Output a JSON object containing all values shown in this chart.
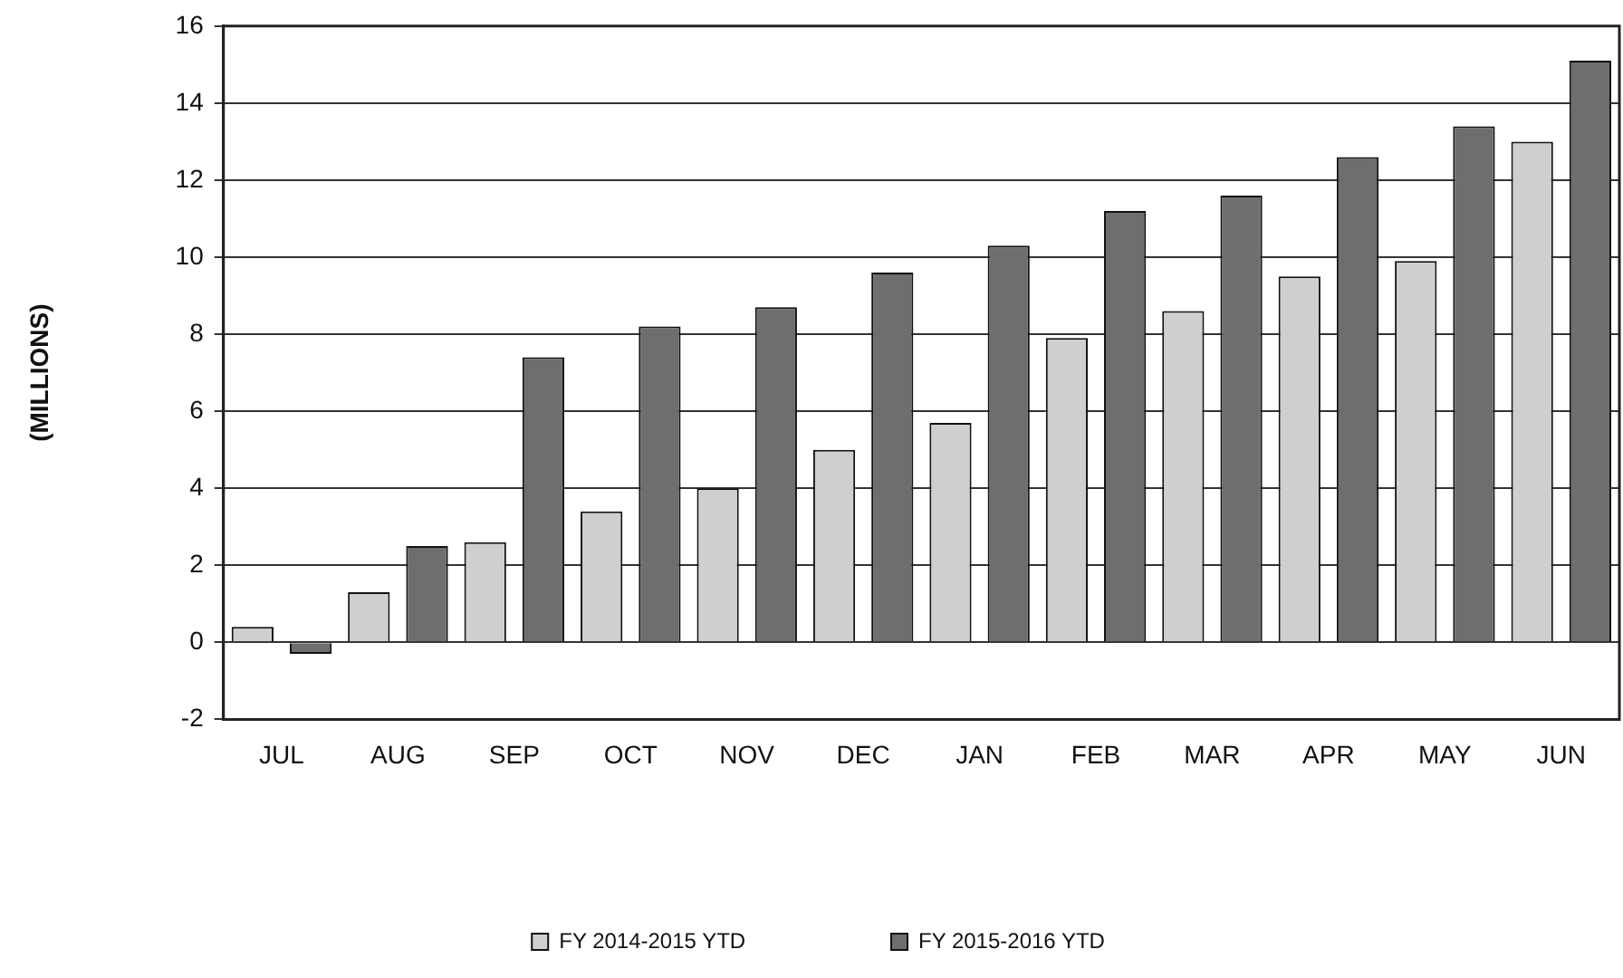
{
  "chart_data": {
    "type": "bar",
    "ylabel": "(MILLIONS)",
    "categories": [
      "JUL",
      "AUG",
      "SEP",
      "OCT",
      "NOV",
      "DEC",
      "JAN",
      "FEB",
      "MAR",
      "APR",
      "MAY",
      "JUN"
    ],
    "series": [
      {
        "name": "FY 2014-2015 YTD",
        "color": "#cfcfcf",
        "values": [
          0.4,
          1.3,
          2.6,
          3.4,
          4.0,
          5.0,
          5.7,
          7.9,
          8.6,
          9.5,
          9.9,
          13.0
        ]
      },
      {
        "name": "FY 2015-2016 YTD",
        "color": "#6e6e6e",
        "values": [
          -0.3,
          2.5,
          7.4,
          8.2,
          8.7,
          9.6,
          10.3,
          11.2,
          11.6,
          12.6,
          13.4,
          15.1
        ]
      }
    ],
    "ylim": [
      -2,
      16
    ],
    "yticks": [
      -2,
      0,
      2,
      4,
      6,
      8,
      10,
      12,
      14,
      16
    ],
    "grid": "y",
    "legend": "bottom"
  }
}
